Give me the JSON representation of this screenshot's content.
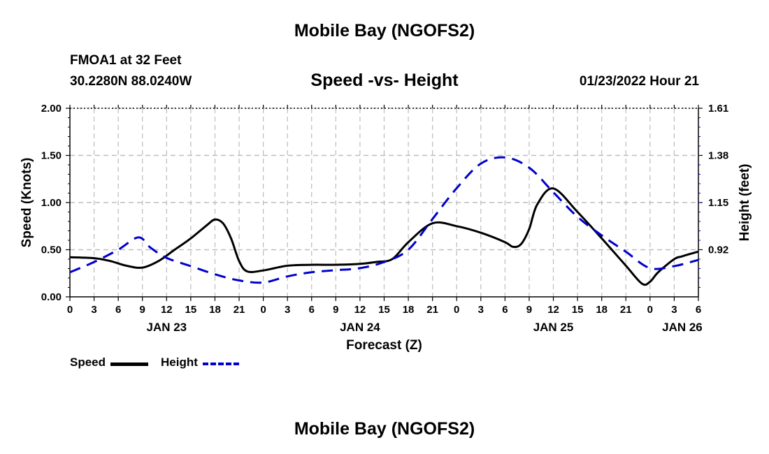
{
  "header": {
    "title": "Mobile Bay (NGOFS2)",
    "station": "FMOA1 at 32 Feet",
    "coords": "30.2280N  88.0240W",
    "subtitle": "Speed -vs- Height",
    "datetime": "01/23/2022 Hour 21"
  },
  "footer": {
    "title": "Mobile Bay (NGOFS2)"
  },
  "legend": {
    "speed_label": "Speed",
    "height_label": "Height"
  },
  "colors": {
    "speed": "#000000",
    "height": "#0000cc",
    "grid": "#bbbbbb"
  },
  "chart_data": {
    "type": "line",
    "title": "Speed -vs- Height",
    "xlabel": "Forecast (Z)",
    "ylabel": "Speed (Knots)",
    "y2label": "Height (feet)",
    "xlim": [
      0,
      78
    ],
    "ylim": [
      0,
      2.0
    ],
    "y2lim": [
      0.69,
      1.61
    ],
    "x_ticks": [
      0,
      3,
      6,
      9,
      12,
      15,
      18,
      21,
      24,
      27,
      30,
      33,
      36,
      39,
      42,
      45,
      48,
      51,
      54,
      57,
      60,
      63,
      66,
      69,
      72,
      75,
      78
    ],
    "x_tick_labels": [
      "0",
      "3",
      "6",
      "9",
      "12",
      "15",
      "18",
      "21",
      "0",
      "3",
      "6",
      "9",
      "12",
      "15",
      "18",
      "21",
      "0",
      "3",
      "6",
      "9",
      "12",
      "15",
      "18",
      "21",
      "0",
      "3",
      "6"
    ],
    "day_labels": [
      {
        "x": 12,
        "label": "JAN 23"
      },
      {
        "x": 36,
        "label": "JAN 24"
      },
      {
        "x": 60,
        "label": "JAN 25"
      },
      {
        "x": 76,
        "label": "JAN 26"
      }
    ],
    "y_ticks": [
      0,
      0.5,
      1.0,
      1.5,
      2.0
    ],
    "y_tick_labels": [
      "0.00",
      "0.50",
      "1.00",
      "1.50",
      "2.00"
    ],
    "y2_ticks": [
      0.92,
      1.15,
      1.38,
      1.61
    ],
    "y2_tick_labels": [
      "0.92",
      "1.15",
      "1.38",
      "1.61"
    ],
    "series": [
      {
        "name": "Speed",
        "axis": "left",
        "style": "solid",
        "x": [
          0,
          3,
          5,
          7,
          9,
          11,
          13,
          15,
          17,
          18,
          19,
          20,
          21,
          22,
          24,
          27,
          30,
          33,
          36,
          38,
          40,
          42,
          45,
          48,
          51,
          54,
          55,
          56,
          57,
          58,
          60,
          63,
          66,
          69,
          71,
          72,
          73,
          75,
          76,
          78
        ],
        "y": [
          0.42,
          0.41,
          0.38,
          0.33,
          0.31,
          0.38,
          0.5,
          0.62,
          0.76,
          0.82,
          0.78,
          0.62,
          0.38,
          0.27,
          0.28,
          0.33,
          0.34,
          0.34,
          0.35,
          0.37,
          0.4,
          0.58,
          0.78,
          0.75,
          0.68,
          0.58,
          0.53,
          0.56,
          0.72,
          0.98,
          1.15,
          0.9,
          0.62,
          0.33,
          0.14,
          0.16,
          0.26,
          0.4,
          0.43,
          0.48
        ]
      },
      {
        "name": "Height",
        "axis": "right",
        "style": "dashed",
        "x": [
          0,
          3,
          6,
          8.5,
          10,
          12,
          15,
          18,
          21,
          24,
          27,
          30,
          33,
          36,
          39,
          42,
          45,
          48,
          51,
          54,
          57,
          60,
          63,
          66,
          69,
          72,
          75,
          78
        ],
        "y": [
          0.81,
          0.86,
          0.92,
          0.98,
          0.93,
          0.88,
          0.84,
          0.8,
          0.77,
          0.76,
          0.79,
          0.81,
          0.82,
          0.83,
          0.86,
          0.92,
          1.07,
          1.22,
          1.34,
          1.37,
          1.32,
          1.2,
          1.08,
          0.99,
          0.91,
          0.83,
          0.84,
          0.87
        ]
      }
    ]
  }
}
